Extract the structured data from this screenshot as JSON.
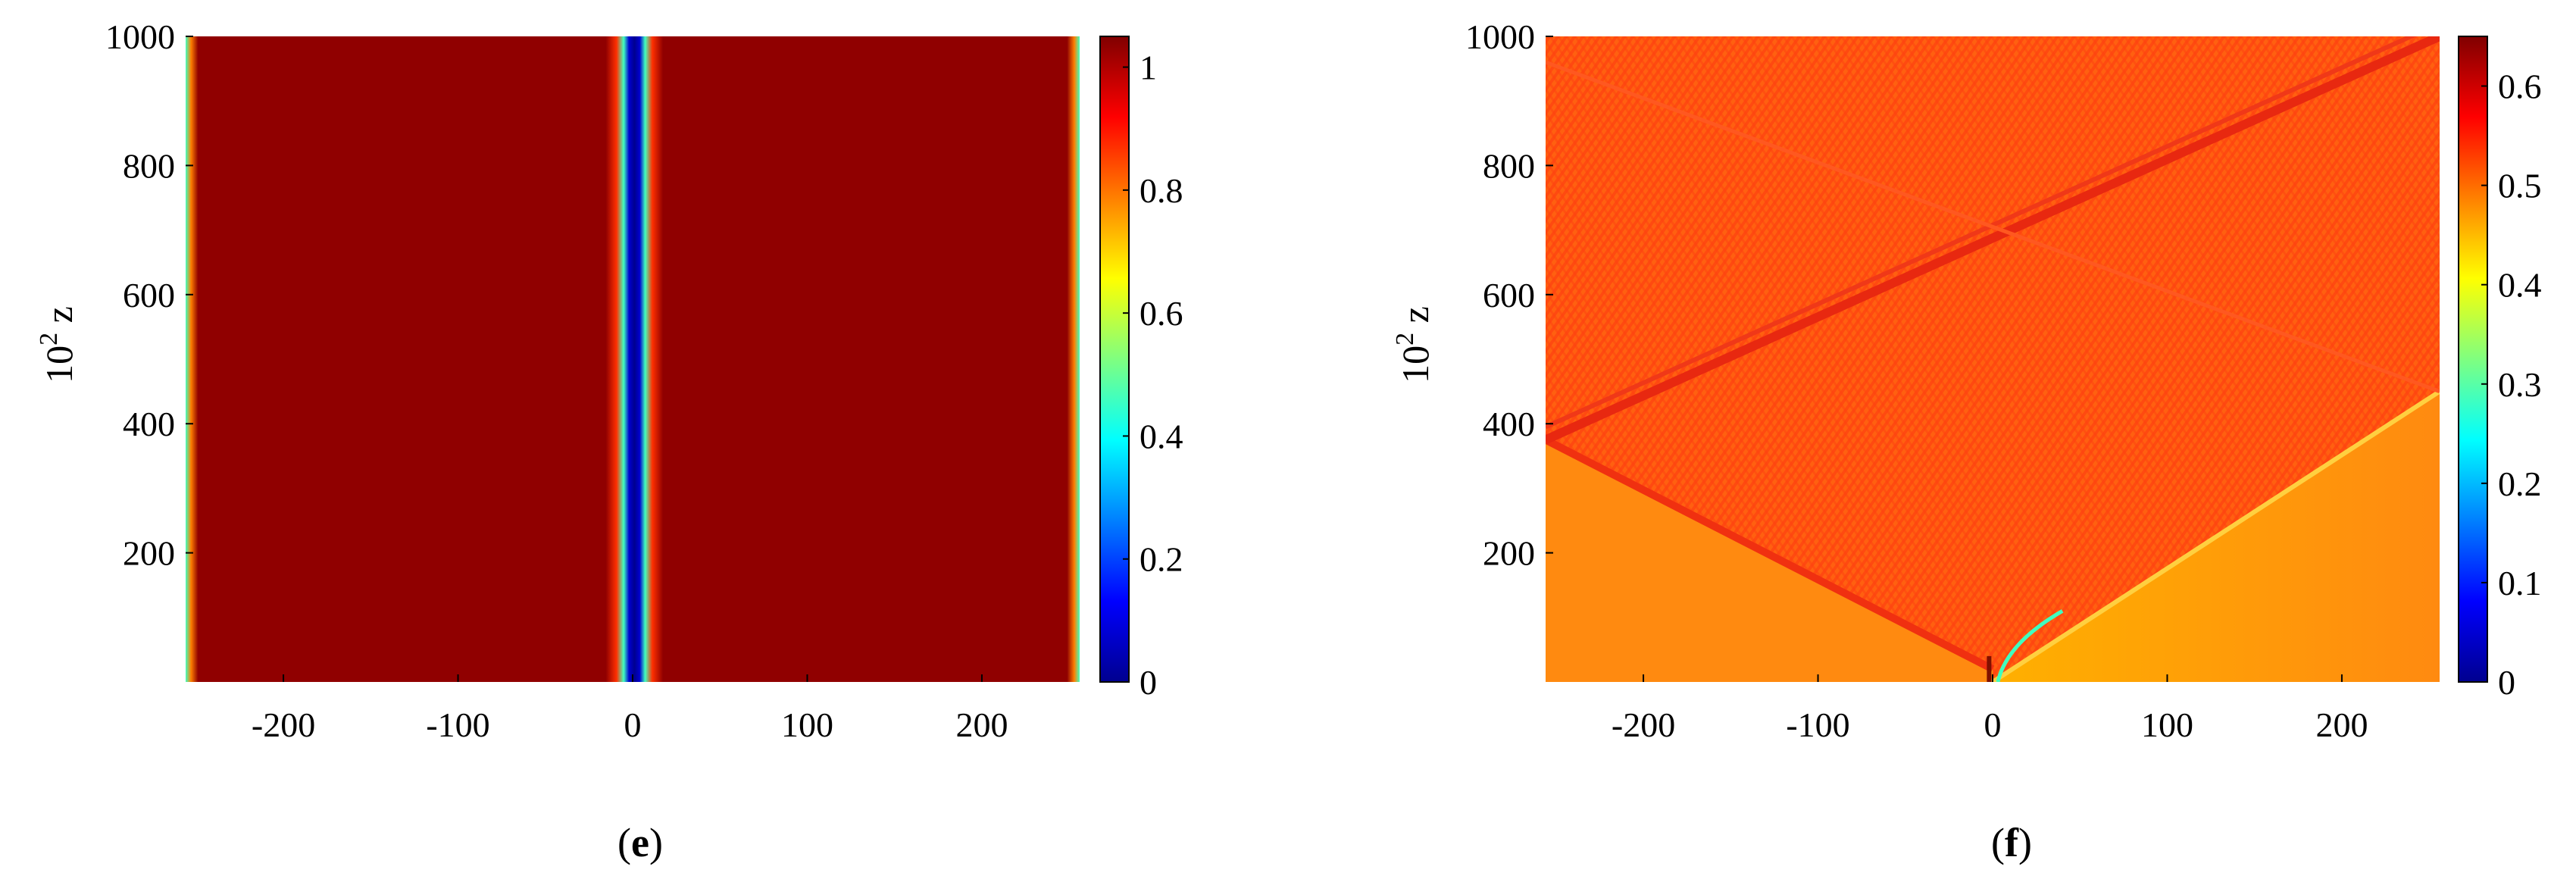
{
  "chart_data": [
    {
      "type": "heatmap",
      "panel_label": {
        "open": "(",
        "letter": "e",
        "close": ")"
      },
      "ylabel": {
        "base": "10",
        "exp": "2",
        "var": "z"
      },
      "xlim": [
        -256,
        256
      ],
      "ylim": [
        0,
        1000
      ],
      "xticks": [
        -200,
        -100,
        0,
        100,
        200
      ],
      "yticks": [
        200,
        400,
        600,
        800,
        1000
      ],
      "colorbar": {
        "min": 0,
        "max": 1.05,
        "ticks": [
          0,
          0.2,
          0.4,
          0.6,
          0.8,
          1
        ],
        "colormap": "jet"
      },
      "field": {
        "background_value": 1.0,
        "dark_soliton_center_x": 0,
        "dark_soliton_width": 6,
        "boundary_edge_x": [
          -252,
          252
        ]
      }
    },
    {
      "type": "heatmap",
      "panel_label": {
        "open": "(",
        "letter": "f",
        "close": ")"
      },
      "ylabel": {
        "base": "10",
        "exp": "2",
        "var": "z"
      },
      "xlim": [
        -256,
        256
      ],
      "ylim": [
        0,
        1000
      ],
      "xticks": [
        -200,
        -100,
        0,
        100,
        200
      ],
      "yticks": [
        200,
        400,
        600,
        800,
        1000
      ],
      "colorbar": {
        "min": 0,
        "max": 0.65,
        "ticks": [
          0,
          0.1,
          0.2,
          0.3,
          0.4,
          0.5,
          0.6
        ],
        "colormap": "jet"
      },
      "field": {
        "background_value": 0.52,
        "shock_origin": [
          0,
          0
        ],
        "shock_reflect_z": 450,
        "left_wave_path": [
          [
            0,
            20
          ],
          [
            -256,
            375
          ]
        ],
        "left_wave_reflect": [
          [
            -256,
            375
          ],
          [
            256,
            1000
          ]
        ],
        "right_wave_path": [
          [
            0,
            0
          ],
          [
            256,
            450
          ]
        ],
        "right_wave_reflect": [
          [
            256,
            450
          ],
          [
            -256,
            960
          ]
        ]
      }
    }
  ]
}
